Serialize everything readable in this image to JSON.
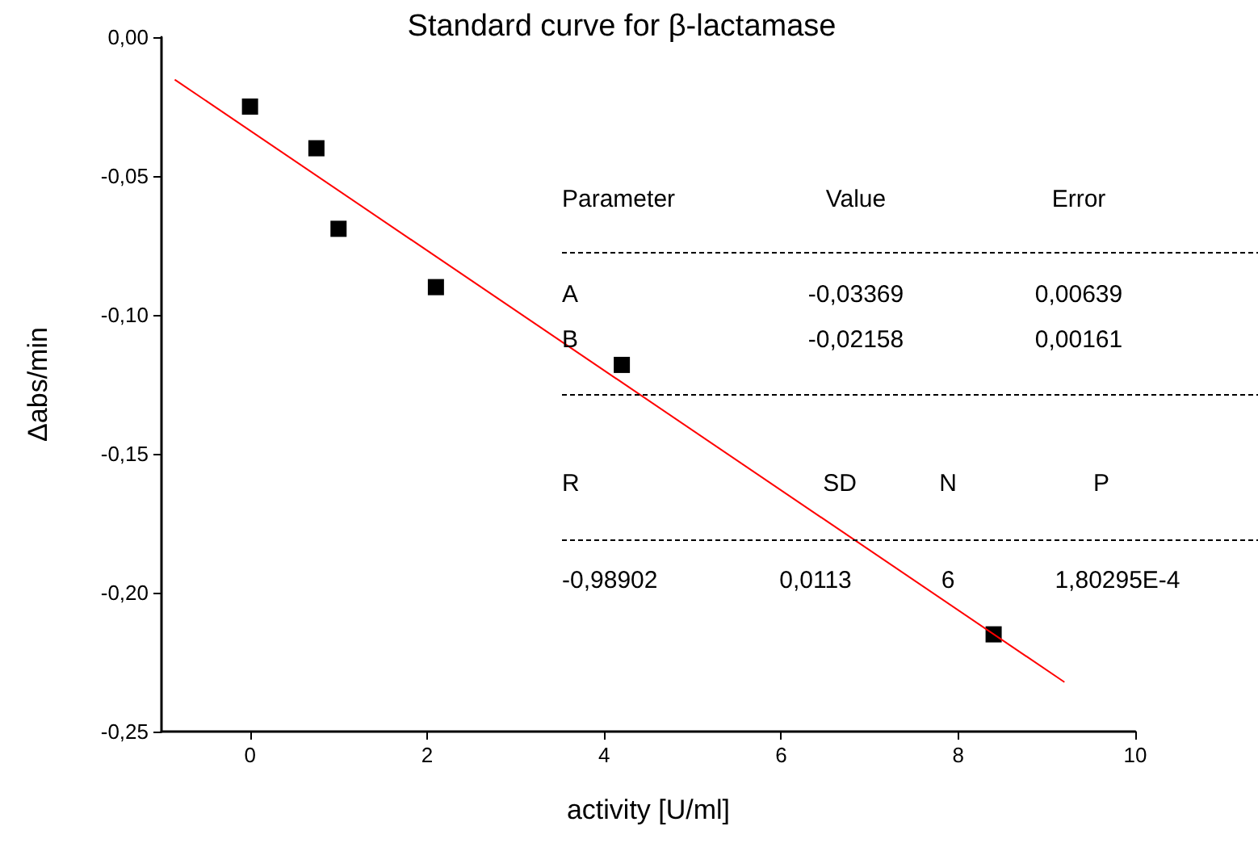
{
  "chart_data": {
    "type": "scatter",
    "title": "Standard curve for β-lactamase",
    "xlabel": "activity [U/ml]",
    "ylabel": "Δabs/min",
    "marker": "square",
    "xlim": [
      -1,
      10
    ],
    "xticks": [
      0,
      2,
      4,
      6,
      8,
      10
    ],
    "ylim": [
      -0.25,
      0
    ],
    "yticks": [
      {
        "value": -0.25,
        "label": "-0,25"
      },
      {
        "value": -0.2,
        "label": "-0,20"
      },
      {
        "value": -0.15,
        "label": "-0,15"
      },
      {
        "value": -0.1,
        "label": "-0,10"
      },
      {
        "value": -0.05,
        "label": "-0,05"
      },
      {
        "value": 0,
        "label": "0,00"
      }
    ],
    "series": [
      {
        "color": "#000000",
        "x": [
          0,
          0.75,
          1,
          2.1,
          4.2,
          8.4
        ],
        "values": [
          -0.025,
          -0.04,
          -0.069,
          -0.09,
          -0.118,
          -0.215
        ]
      },
      {
        "type": "line",
        "color": "#ff0000",
        "marker": "none",
        "x": [
          -0.85,
          9.2
        ],
        "values": [
          -0.0153,
          -0.2322
        ]
      }
    ],
    "annotations": [
      "Parameter",
      "Value",
      "Error",
      "A",
      "-0,03369",
      "0,00639",
      "B",
      "-0,02158",
      "0,00161",
      "R",
      "SD",
      "N",
      "P",
      "-0,98902",
      "0,0113",
      "6",
      "1,80295E-4"
    ]
  }
}
